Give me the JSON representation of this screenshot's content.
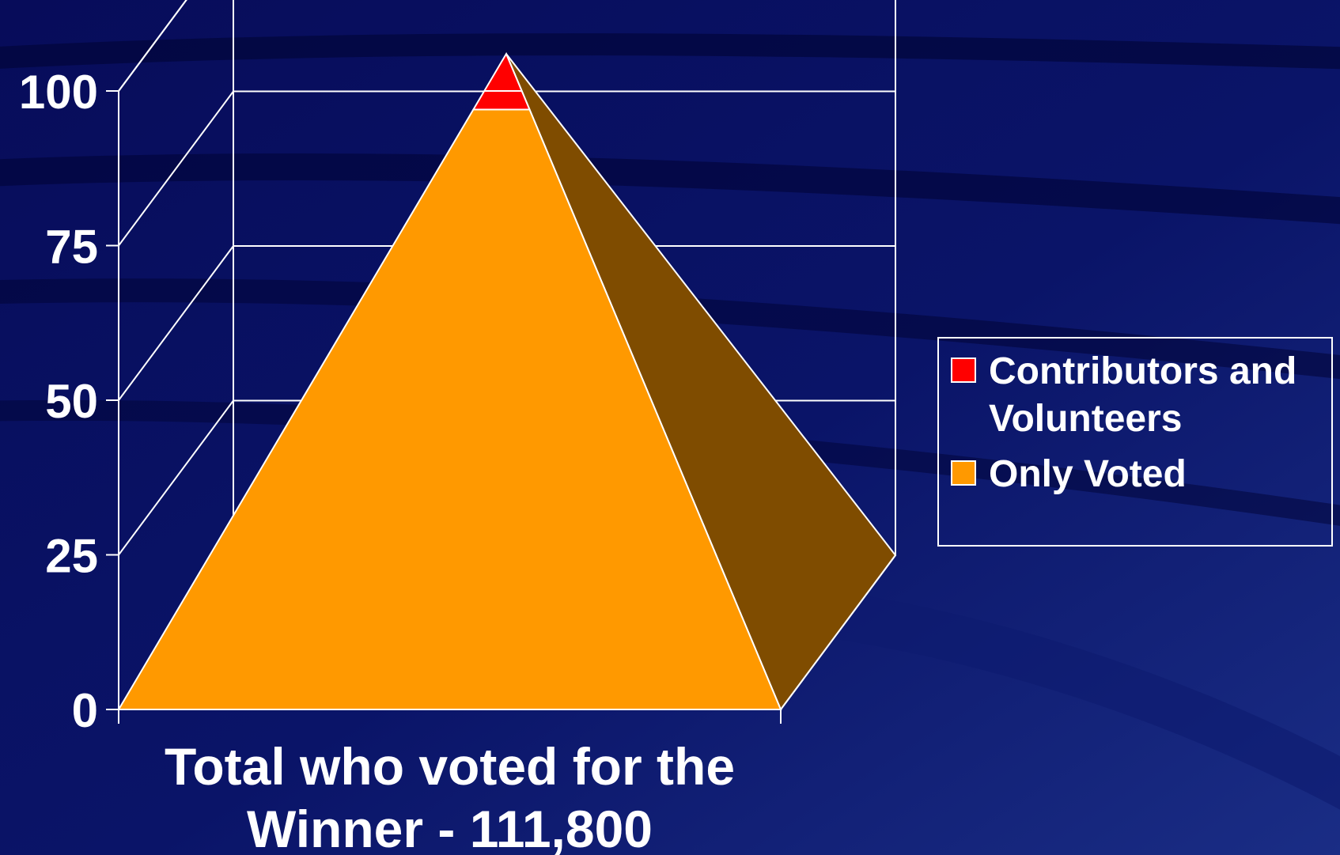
{
  "chart_data": {
    "type": "pyramid",
    "categories": [
      "Total who voted for the Winner - 111,800"
    ],
    "category_lines": [
      "Total who voted for the",
      "Winner - 111,800"
    ],
    "series": [
      {
        "name": "Contributors and Volunteers",
        "values": [
          3
        ],
        "color": "#ff0000"
      },
      {
        "name": "Only Voted",
        "values": [
          97
        ],
        "color": "#ff9900"
      }
    ],
    "legend_lines": [
      [
        "Contributors and",
        "Volunteers"
      ],
      [
        "Only Voted"
      ]
    ],
    "yticks": [
      "0",
      "25",
      "50",
      "75",
      "100"
    ],
    "ytick_values": [
      0,
      25,
      50,
      75,
      100
    ],
    "ylim": [
      0,
      100
    ],
    "total": 106,
    "grid": true,
    "legend_position": "right",
    "colors": {
      "background": "#050a52",
      "axis": "#ffffff",
      "text": "#ffffff",
      "side_face": "#7f4c00"
    }
  }
}
